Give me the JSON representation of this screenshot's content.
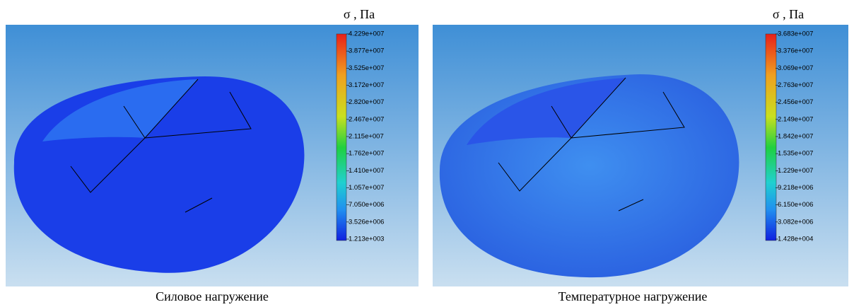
{
  "panels": [
    {
      "unit": "σ , Па",
      "scale_labels": [
        "4.229e+007",
        "3.877e+007",
        "3.525e+007",
        "3.172e+007",
        "2.820e+007",
        "2.467e+007",
        "2.115e+007",
        "1.762e+007",
        "1.410e+007",
        "1.057e+007",
        "7.050e+006",
        "3.526e+006",
        "1.213e+003"
      ],
      "caption": "Силовое нагружение"
    },
    {
      "unit": "σ , Па",
      "scale_labels": [
        "3.683e+007",
        "3.376e+007",
        "3.069e+007",
        "2.763e+007",
        "2.456e+007",
        "2.149e+007",
        "1.842e+007",
        "1.535e+007",
        "1.229e+007",
        "9.218e+006",
        "6.150e+006",
        "3.082e+006",
        "1.428e+004"
      ],
      "caption": "Температурное нагружение"
    }
  ]
}
